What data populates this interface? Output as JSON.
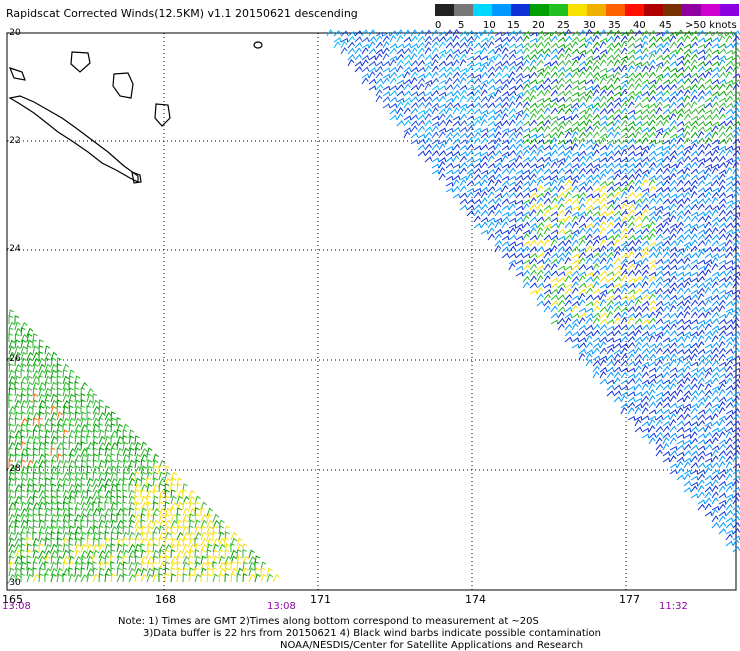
{
  "title": "Rapidscat Corrected Winds(12.5KM) v1.1 20150621 descending",
  "legend": {
    "colors": [
      "#222222",
      "#777777",
      "#00d8ff",
      "#0099ff",
      "#1030d8",
      "#00a000",
      "#22c020",
      "#f8e000",
      "#f0b000",
      "#ff6000",
      "#ff1000",
      "#b00000",
      "#7a3000",
      "#9000a0",
      "#d000d0",
      "#8a00e0"
    ],
    "labels": [
      "0",
      "5",
      "10",
      "15",
      "20",
      "25",
      "30",
      "35",
      "40",
      "45",
      ">50 knots"
    ]
  },
  "axes": {
    "lat_labels": [
      "-20",
      "-22",
      "-24",
      "-26",
      "-28",
      "-30"
    ],
    "lon_labels": [
      "165",
      "168",
      "171",
      "174",
      "177"
    ],
    "times": [
      "13:08",
      "13:08",
      "11:32"
    ]
  },
  "notes": [
    "Note: 1) Times are GMT 2)Times along bottom correspond to measurement at ~20S",
    "3)Data buffer is 22 hrs from 20150621 4) Black wind barbs indicate possible contamination",
    "NOAA/NESDIS/Center for Satellite Applications and Research"
  ]
}
